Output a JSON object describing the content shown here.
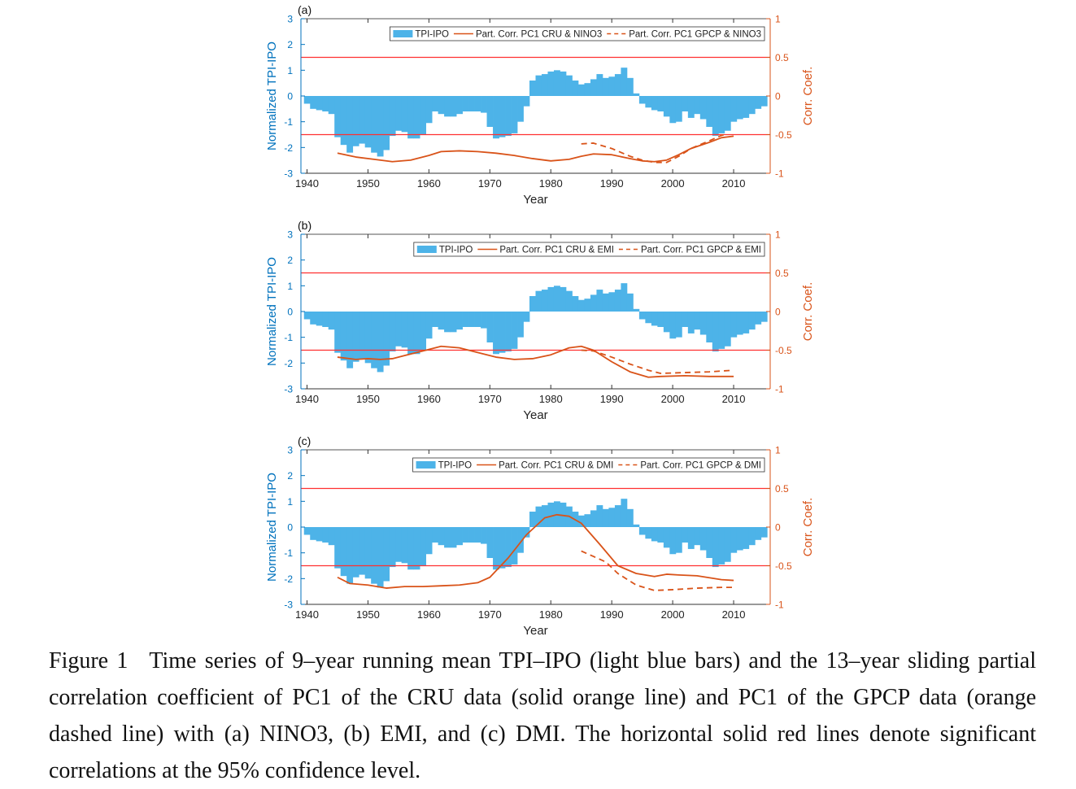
{
  "caption": {
    "label": "Figure 1",
    "text": "Time series of 9–year running mean TPI–IPO (light blue bars) and the 13–year sliding partial correlation coefficient of PC1 of the CRU data (solid orange line) and PC1 of the GPCP data (orange dashed line) with (a) NINO3, (b) EMI, and (c) DMI. The horizontal solid red lines denote significant correlations at the 95% confidence level."
  },
  "colors": {
    "bar": "#4db3e8",
    "line": "#d95319",
    "sig": "#ff3030",
    "left_axis": "#0072bd",
    "right_axis": "#d95319"
  },
  "tpi_ipo": {
    "years": [
      1940,
      1941,
      1942,
      1943,
      1944,
      1945,
      1946,
      1947,
      1948,
      1949,
      1950,
      1951,
      1952,
      1953,
      1954,
      1955,
      1956,
      1957,
      1958,
      1959,
      1960,
      1961,
      1962,
      1963,
      1964,
      1965,
      1966,
      1967,
      1968,
      1969,
      1970,
      1971,
      1972,
      1973,
      1974,
      1975,
      1976,
      1977,
      1978,
      1979,
      1980,
      1981,
      1982,
      1983,
      1984,
      1985,
      1986,
      1987,
      1988,
      1989,
      1990,
      1991,
      1992,
      1993,
      1994,
      1995,
      1996,
      1997,
      1998,
      1999,
      2000,
      2001,
      2002,
      2003,
      2004,
      2005,
      2006,
      2007,
      2008,
      2009,
      2010,
      2011,
      2012,
      2013,
      2014,
      2015
    ],
    "values": [
      -0.3,
      -0.5,
      -0.55,
      -0.6,
      -0.7,
      -1.6,
      -1.9,
      -2.2,
      -1.95,
      -1.85,
      -2.0,
      -2.2,
      -2.35,
      -2.1,
      -1.55,
      -1.35,
      -1.4,
      -1.65,
      -1.65,
      -1.5,
      -1.05,
      -0.6,
      -0.7,
      -0.8,
      -0.8,
      -0.7,
      -0.6,
      -0.6,
      -0.6,
      -0.65,
      -1.2,
      -1.65,
      -1.6,
      -1.55,
      -1.45,
      -1.0,
      -0.4,
      0.6,
      0.8,
      0.85,
      0.95,
      1.0,
      0.95,
      0.8,
      0.6,
      0.45,
      0.5,
      0.65,
      0.85,
      0.7,
      0.75,
      0.85,
      1.1,
      0.7,
      0.1,
      -0.3,
      -0.45,
      -0.55,
      -0.6,
      -0.8,
      -1.05,
      -1.0,
      -0.6,
      -0.85,
      -0.7,
      -0.9,
      -1.2,
      -1.55,
      -1.45,
      -1.35,
      -1.0,
      -0.9,
      -0.85,
      -0.7,
      -0.5,
      -0.4
    ]
  },
  "panels": [
    {
      "tag": "(a)",
      "xlabel": "Year",
      "ylabel_left": "Normalized TPI-IPO",
      "ylabel_right": "Corr. Coef.",
      "legend": {
        "bar": "TPI-IPO",
        "solid": "Part. Corr. PC1 CRU & NINO3",
        "dashed": "Part. Corr. PC1 GPCP & NINO3"
      },
      "cru": {
        "x": [
          1945,
          1948,
          1951,
          1954,
          1957,
          1960,
          1962,
          1965,
          1968,
          1971,
          1974,
          1977,
          1980,
          1983,
          1985,
          1987,
          1990,
          1993,
          1995,
          1997,
          1999,
          2001,
          2003,
          2006,
          2008,
          2010
        ],
        "y": [
          -0.74,
          -0.79,
          -0.82,
          -0.85,
          -0.83,
          -0.77,
          -0.72,
          -0.71,
          -0.72,
          -0.74,
          -0.77,
          -0.81,
          -0.84,
          -0.82,
          -0.78,
          -0.75,
          -0.76,
          -0.81,
          -0.84,
          -0.85,
          -0.83,
          -0.76,
          -0.68,
          -0.6,
          -0.54,
          -0.52
        ]
      },
      "gpcp": {
        "x": [
          1985,
          1987,
          1990,
          1993,
          1995,
          1997,
          1999,
          2001,
          2003,
          2006,
          2008,
          2009
        ],
        "y": [
          -0.62,
          -0.61,
          -0.68,
          -0.78,
          -0.83,
          -0.86,
          -0.86,
          -0.78,
          -0.68,
          -0.58,
          -0.51,
          -0.49
        ]
      }
    },
    {
      "tag": "(b)",
      "xlabel": "Year",
      "ylabel_left": "Normalized TPI-IPO",
      "ylabel_right": "Corr. Coef.",
      "legend": {
        "bar": "TPI-IPO",
        "solid": "Part. Corr. PC1 CRU & EMI",
        "dashed": "Part. Corr. PC1 GPCP & EMI"
      },
      "cru": {
        "x": [
          1945,
          1948,
          1950,
          1952,
          1954,
          1956,
          1959,
          1962,
          1965,
          1968,
          1971,
          1974,
          1977,
          1980,
          1983,
          1985,
          1987,
          1990,
          1993,
          1996,
          1998,
          2002,
          2006,
          2010
        ],
        "y": [
          -0.59,
          -0.62,
          -0.61,
          -0.62,
          -0.61,
          -0.57,
          -0.51,
          -0.45,
          -0.47,
          -0.53,
          -0.59,
          -0.62,
          -0.61,
          -0.56,
          -0.47,
          -0.45,
          -0.5,
          -0.65,
          -0.78,
          -0.85,
          -0.84,
          -0.83,
          -0.84,
          -0.84
        ]
      },
      "gpcp": {
        "x": [
          1985,
          1987,
          1990,
          1993,
          1996,
          1998,
          2002,
          2006,
          2010
        ],
        "y": [
          -0.5,
          -0.51,
          -0.59,
          -0.68,
          -0.76,
          -0.8,
          -0.79,
          -0.78,
          -0.76
        ]
      }
    },
    {
      "tag": "(c)",
      "xlabel": "Year",
      "ylabel_left": "Normalized TPI-IPO",
      "ylabel_right": "Corr. Coef.",
      "legend": {
        "bar": "TPI-IPO",
        "solid": "Part. Corr. PC1 CRU & DMI",
        "dashed": "Part. Corr. PC1 GPCP & DMI"
      },
      "cru": {
        "x": [
          1945,
          1947,
          1950,
          1953,
          1956,
          1959,
          1962,
          1965,
          1968,
          1970,
          1973,
          1976,
          1979,
          1981,
          1983,
          1985,
          1988,
          1991,
          1994,
          1997,
          1999,
          2001,
          2004,
          2008,
          2010
        ],
        "y": [
          -0.65,
          -0.73,
          -0.75,
          -0.79,
          -0.77,
          -0.77,
          -0.76,
          -0.75,
          -0.72,
          -0.65,
          -0.4,
          -0.1,
          0.12,
          0.16,
          0.14,
          0.05,
          -0.22,
          -0.5,
          -0.6,
          -0.64,
          -0.61,
          -0.62,
          -0.63,
          -0.68,
          -0.69
        ]
      },
      "gpcp": {
        "x": [
          1985,
          1987,
          1989,
          1991,
          1994,
          1997,
          2000,
          2004,
          2008,
          2010
        ],
        "y": [
          -0.31,
          -0.38,
          -0.45,
          -0.6,
          -0.75,
          -0.82,
          -0.81,
          -0.79,
          -0.78,
          -0.78
        ]
      }
    }
  ],
  "chart_data": [
    {
      "type": "bar+line",
      "panel": "(a)",
      "xlim": [
        1939,
        2016
      ],
      "ylim_left": [
        -3,
        3
      ],
      "ylim_right": [
        -1,
        1
      ],
      "significance_lines": [
        0.5,
        -0.5
      ],
      "grid": false,
      "legend_placement": "top-right",
      "xticks": [
        1940,
        1950,
        1960,
        1970,
        1980,
        1990,
        2000,
        2010
      ],
      "yticks_left": [
        -3,
        -2,
        -1,
        0,
        1,
        2,
        3
      ],
      "yticks_right": [
        -1,
        -0.5,
        0,
        0.5,
        1
      ]
    },
    {
      "type": "bar+line",
      "panel": "(b)",
      "xlim": [
        1939,
        2016
      ],
      "ylim_left": [
        -3,
        3
      ],
      "ylim_right": [
        -1,
        1
      ],
      "significance_lines": [
        0.5,
        -0.5
      ],
      "grid": false,
      "legend_placement": "top-right",
      "xticks": [
        1940,
        1950,
        1960,
        1970,
        1980,
        1990,
        2000,
        2010
      ],
      "yticks_left": [
        -3,
        -2,
        -1,
        0,
        1,
        2,
        3
      ],
      "yticks_right": [
        -1,
        -0.5,
        0,
        0.5,
        1
      ]
    },
    {
      "type": "bar+line",
      "panel": "(c)",
      "xlim": [
        1939,
        2016
      ],
      "ylim_left": [
        -3,
        3
      ],
      "ylim_right": [
        -1,
        1
      ],
      "significance_lines": [
        0.5,
        -0.5
      ],
      "grid": false,
      "legend_placement": "top-right",
      "xticks": [
        1940,
        1950,
        1960,
        1970,
        1980,
        1990,
        2000,
        2010
      ],
      "yticks_left": [
        -3,
        -2,
        -1,
        0,
        1,
        2,
        3
      ],
      "yticks_right": [
        -1,
        -0.5,
        0,
        0.5,
        1
      ]
    }
  ]
}
